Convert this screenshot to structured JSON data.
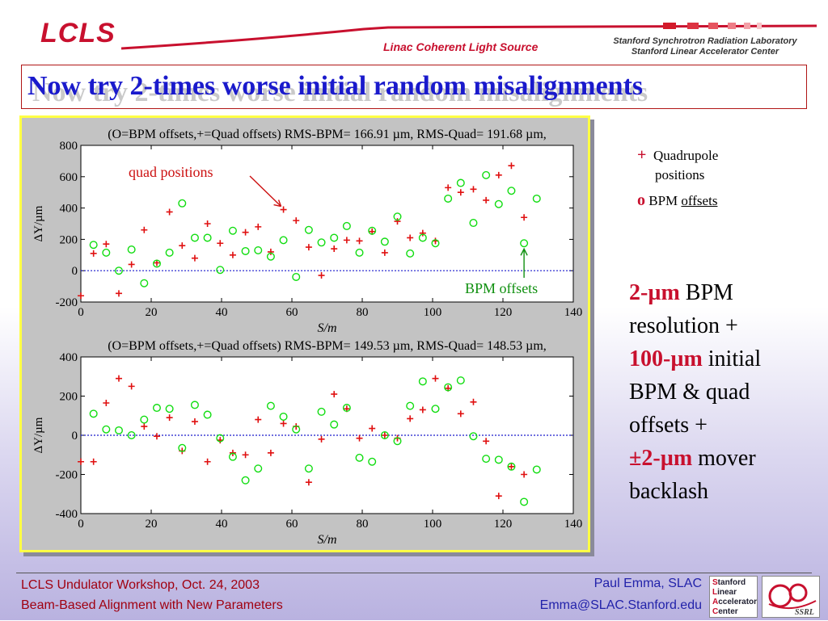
{
  "header": {
    "logo_text": "LCLS",
    "subtitle": "Linac Coherent Light Source",
    "lab_line1": "Stanford Synchrotron Radiation Laboratory",
    "lab_line2": "Stanford Linear Accelerator Center"
  },
  "title": "Now try 2-times worse initial random misalignments",
  "legend": {
    "quad_symbol": "+",
    "quad_label_1": "Quadrupole",
    "quad_label_2": "positions",
    "bpm_symbol": "o",
    "bpm_label_1": "BPM",
    "bpm_label_2": "offsets"
  },
  "bullet": {
    "l1_red": "2-µm",
    "l1": " BPM",
    "l2": "resolution +",
    "l3_red": "100-µm",
    "l3": " initial",
    "l4": "BPM & quad",
    "l5": "offsets +",
    "l6_red": "±2-µm",
    "l6": " mover",
    "l7": "backlash"
  },
  "footer": {
    "left1": "LCLS Undulator Workshop, Oct. 24, 2003",
    "left2": "Beam-Based Alignment with New Parameters",
    "right1": "Paul Emma, SLAC",
    "right2": "Emma@SLAC.Stanford.edu",
    "slac_logo": [
      "Stanford",
      "Linear",
      "Accelerator",
      "Center"
    ],
    "ssrl_logo": "SSRL"
  },
  "chart_data": [
    {
      "type": "scatter",
      "title": "(O=BPM offsets,+=Quad offsets) RMS-BPM= 166.91 µm, RMS-Quad= 191.68 µm,",
      "xlabel": "S/m",
      "ylabel": "ΔY/µm",
      "xlim": [
        0,
        140
      ],
      "ylim": [
        -200,
        800
      ],
      "xticks": [
        0,
        20,
        40,
        60,
        80,
        100,
        120,
        140
      ],
      "yticks": [
        -200,
        0,
        200,
        400,
        600,
        800
      ],
      "zero_line": true,
      "series": [
        {
          "name": "Quad offsets",
          "marker": "+",
          "color": "#e01010",
          "x": [
            0,
            3.6,
            7.2,
            10.8,
            14.4,
            18,
            21.6,
            25.2,
            28.8,
            32.4,
            36,
            39.6,
            43.2,
            46.8,
            50.4,
            54,
            57.6,
            61.2,
            64.8,
            68.4,
            72,
            75.6,
            79.2,
            82.8,
            86.4,
            90,
            93.6,
            97.2,
            100.8,
            104.4,
            108,
            111.6,
            115.2,
            118.8,
            122.4,
            126
          ],
          "y": [
            -160,
            110,
            170,
            -145,
            40,
            260,
            50,
            375,
            160,
            80,
            300,
            175,
            100,
            245,
            280,
            120,
            390,
            320,
            150,
            -30,
            140,
            195,
            190,
            250,
            115,
            315,
            210,
            240,
            190,
            530,
            500,
            520,
            450,
            610,
            670,
            340
          ]
        },
        {
          "name": "BPM offsets",
          "marker": "o",
          "color": "#10dd10",
          "x": [
            3.6,
            7.2,
            10.8,
            14.4,
            18,
            21.6,
            25.2,
            28.8,
            32.4,
            36,
            39.6,
            43.2,
            46.8,
            50.4,
            54,
            57.6,
            61.2,
            64.8,
            68.4,
            72,
            75.6,
            79.2,
            82.8,
            86.4,
            90,
            93.6,
            97.2,
            100.8,
            104.4,
            108,
            111.6,
            115.2,
            118.8,
            122.4,
            126,
            129.6
          ],
          "y": [
            165,
            115,
            0,
            135,
            -80,
            45,
            115,
            430,
            210,
            210,
            5,
            255,
            125,
            130,
            90,
            195,
            -40,
            260,
            180,
            210,
            285,
            115,
            255,
            185,
            345,
            110,
            210,
            175,
            460,
            560,
            305,
            610,
            425,
            510,
            175,
            460
          ]
        }
      ],
      "annotations": [
        "quad positions",
        "BPM offsets"
      ]
    },
    {
      "type": "scatter",
      "title": "(O=BPM offsets,+=Quad offsets) RMS-BPM= 149.53 µm, RMS-Quad= 148.53 µm,",
      "xlabel": "S/m",
      "ylabel": "ΔY/µm",
      "xlim": [
        0,
        140
      ],
      "ylim": [
        -400,
        400
      ],
      "xticks": [
        0,
        20,
        40,
        60,
        80,
        100,
        120,
        140
      ],
      "yticks": [
        -400,
        -200,
        0,
        200,
        400
      ],
      "zero_line": true,
      "series": [
        {
          "name": "Quad offsets",
          "marker": "+",
          "color": "#e01010",
          "x": [
            0,
            3.6,
            7.2,
            10.8,
            14.4,
            18,
            21.6,
            25.2,
            28.8,
            32.4,
            36,
            39.6,
            43.2,
            46.8,
            50.4,
            54,
            57.6,
            61.2,
            64.8,
            68.4,
            72,
            75.6,
            79.2,
            82.8,
            86.4,
            90,
            93.6,
            97.2,
            100.8,
            104.4,
            108,
            111.6,
            115.2,
            118.8,
            122.4,
            126
          ],
          "y": [
            -135,
            -135,
            165,
            290,
            250,
            45,
            -5,
            90,
            -80,
            70,
            -135,
            -25,
            -90,
            -100,
            80,
            -90,
            60,
            45,
            -240,
            -20,
            210,
            135,
            -15,
            35,
            0,
            -15,
            85,
            130,
            290,
            240,
            110,
            170,
            -30,
            -310,
            -160,
            -200
          ]
        },
        {
          "name": "BPM offsets",
          "marker": "o",
          "color": "#10dd10",
          "x": [
            3.6,
            7.2,
            10.8,
            14.4,
            18,
            21.6,
            25.2,
            28.8,
            32.4,
            36,
            39.6,
            43.2,
            46.8,
            50.4,
            54,
            57.6,
            61.2,
            64.8,
            68.4,
            72,
            75.6,
            79.2,
            82.8,
            86.4,
            90,
            93.6,
            97.2,
            100.8,
            104.4,
            108,
            111.6,
            115.2,
            118.8,
            122.4,
            126,
            129.6
          ],
          "y": [
            110,
            30,
            25,
            0,
            80,
            140,
            135,
            -65,
            155,
            105,
            -15,
            -110,
            -230,
            -170,
            150,
            95,
            30,
            -170,
            120,
            55,
            140,
            -115,
            -135,
            0,
            -30,
            150,
            275,
            135,
            245,
            280,
            -5,
            -120,
            -125,
            -160,
            -340,
            -175
          ]
        }
      ]
    }
  ]
}
